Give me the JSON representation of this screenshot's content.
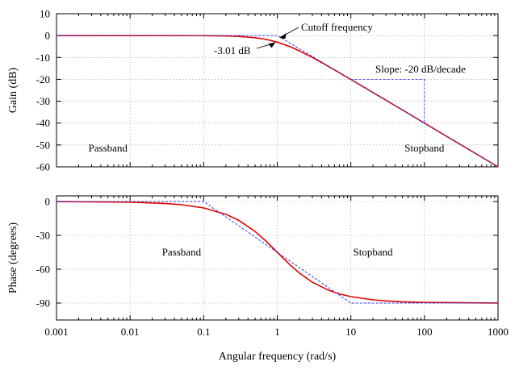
{
  "chart_data": [
    {
      "type": "line",
      "ylabel": "Gain (dB)",
      "xscale": "log",
      "xlim": [
        0.001,
        1000
      ],
      "ylim": [
        -60,
        10
      ],
      "xticks": [
        0.001,
        0.01,
        0.1,
        1,
        10,
        100,
        1000
      ],
      "yticks": [
        10,
        0,
        -10,
        -20,
        -30,
        -40,
        -50,
        -60
      ],
      "ytick_labels": [
        "10",
        "0",
        "-10",
        "-20",
        "-30",
        "-40",
        "-50",
        "-60"
      ],
      "grid": true,
      "series": [
        {
          "role": "actual",
          "color": "#e00000",
          "x": [
            0.001,
            0.01,
            0.1,
            0.2,
            0.3,
            0.5,
            0.7,
            1,
            1.5,
            2,
            3,
            5,
            7,
            10,
            20,
            50,
            100,
            200,
            500,
            1000
          ],
          "y": [
            0,
            0,
            -0.04,
            -0.17,
            -0.37,
            -0.97,
            -1.7,
            -3.01,
            -5.1,
            -6.99,
            -10.0,
            -14.15,
            -16.99,
            -20.04,
            -26.02,
            -33.98,
            -40.0,
            -46.02,
            -53.98,
            -60.0
          ]
        },
        {
          "role": "asymptote",
          "color": "#3a3adf",
          "x": [
            0.001,
            1,
            1000
          ],
          "y": [
            0,
            0,
            -60
          ]
        }
      ],
      "annotations": [
        {
          "text": "Cutoff frequency",
          "x": 1,
          "y": 0
        },
        {
          "text": "-3.01 dB",
          "x": 1,
          "y": -3.01
        },
        {
          "text": "Slope: -20 dB/decade",
          "x": 10,
          "y": -20,
          "x2": 100,
          "y2": -40
        },
        {
          "text": "Passband",
          "x": 0.005,
          "y": -53
        },
        {
          "text": "Stopband",
          "x": 100,
          "y": -53
        }
      ]
    },
    {
      "type": "line",
      "xlabel": "Angular frequency (rad/s)",
      "ylabel": "Phase (degrees)",
      "xscale": "log",
      "xlim": [
        0.001,
        1000
      ],
      "ylim": [
        -105,
        5
      ],
      "xticks": [
        0.001,
        0.01,
        0.1,
        1,
        10,
        100,
        1000
      ],
      "xtick_labels": [
        "0.001",
        "0.01",
        "0.1",
        "1",
        "10",
        "100",
        "1000"
      ],
      "yticks": [
        0,
        -30,
        -60,
        -90
      ],
      "ytick_labels": [
        "0",
        "-30",
        "-60",
        "-90"
      ],
      "grid": true,
      "series": [
        {
          "role": "actual",
          "color": "#e00000",
          "x": [
            0.001,
            0.01,
            0.03,
            0.05,
            0.1,
            0.2,
            0.3,
            0.5,
            0.7,
            1,
            1.5,
            2,
            3,
            5,
            7,
            10,
            20,
            30,
            50,
            100,
            1000
          ],
          "y": [
            -0.06,
            -0.57,
            -1.72,
            -2.86,
            -5.71,
            -11.31,
            -16.7,
            -26.57,
            -34.99,
            -45.0,
            -56.31,
            -63.43,
            -71.57,
            -78.69,
            -81.87,
            -84.29,
            -87.14,
            -88.09,
            -88.85,
            -89.43,
            -89.94
          ]
        },
        {
          "role": "asymptote",
          "color": "#3a3adf",
          "x": [
            0.001,
            0.1,
            10,
            1000
          ],
          "y": [
            0,
            0,
            -90,
            -90
          ]
        }
      ],
      "annotations": [
        {
          "text": "Passband",
          "x": 0.05,
          "y": -48
        },
        {
          "text": "Stopband",
          "x": 20,
          "y": -48
        }
      ]
    }
  ]
}
